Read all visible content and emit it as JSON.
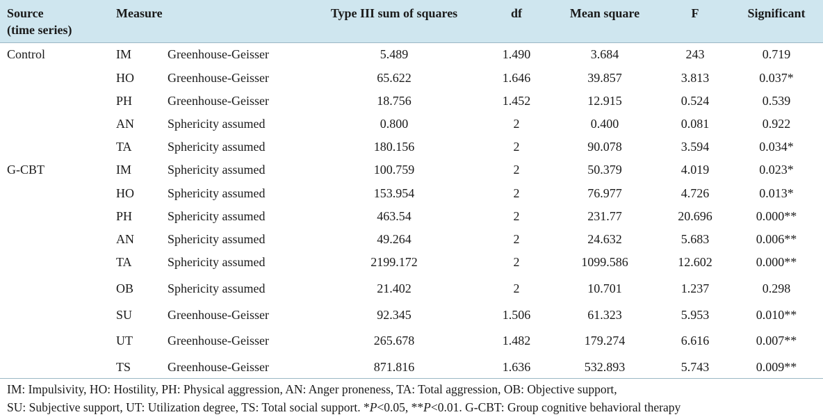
{
  "header": {
    "source_line1": "Source",
    "source_line2": "(time series)",
    "measure": "Measure",
    "ss": "Type III sum of squares",
    "df": "df",
    "ms": "Mean square",
    "f": "F",
    "sig": "Significant"
  },
  "rows": [
    {
      "source": "Control",
      "measure": "IM",
      "test": "Greenhouse-Geisser",
      "ss": "5.489",
      "df": "1.490",
      "ms": "3.684",
      "f": "243",
      "sig": "0.719"
    },
    {
      "source": "",
      "measure": "HO",
      "test": "Greenhouse-Geisser",
      "ss": "65.622",
      "df": "1.646",
      "ms": "39.857",
      "f": "3.813",
      "sig": "0.037*"
    },
    {
      "source": "",
      "measure": "PH",
      "test": "Greenhouse-Geisser",
      "ss": "18.756",
      "df": "1.452",
      "ms": "12.915",
      "f": "0.524",
      "sig": "0.539"
    },
    {
      "source": "",
      "measure": "AN",
      "test": "Sphericity assumed",
      "ss": "0.800",
      "df": "2",
      "ms": "0.400",
      "f": "0.081",
      "sig": "0.922"
    },
    {
      "source": "",
      "measure": "TA",
      "test": "Sphericity assumed",
      "ss": "180.156",
      "df": "2",
      "ms": "90.078",
      "f": "3.594",
      "sig": "0.034*"
    },
    {
      "source": "G-CBT",
      "measure": "IM",
      "test": "Sphericity assumed",
      "ss": "100.759",
      "df": "2",
      "ms": "50.379",
      "f": "4.019",
      "sig": "0.023*"
    },
    {
      "source": "",
      "measure": "HO",
      "test": "Sphericity assumed",
      "ss": "153.954",
      "df": "2",
      "ms": "76.977",
      "f": "4.726",
      "sig": "0.013*"
    },
    {
      "source": "",
      "measure": "PH",
      "test": "Sphericity assumed",
      "ss": "463.54",
      "df": "2",
      "ms": "231.77",
      "f": "20.696",
      "sig": "0.000**"
    },
    {
      "source": "",
      "measure": "AN",
      "test": "Sphericity assumed",
      "ss": "49.264",
      "df": "2",
      "ms": "24.632",
      "f": "5.683",
      "sig": "0.006**"
    },
    {
      "source": "",
      "measure": "TA",
      "test": "Sphericity assumed",
      "ss": "2199.172",
      "df": "2",
      "ms": "1099.586",
      "f": "12.602",
      "sig": "0.000**"
    },
    {
      "source": "",
      "measure": "OB",
      "test": "Sphericity assumed",
      "ss": "21.402",
      "df": "2",
      "ms": "10.701",
      "f": "1.237",
      "sig": "0.298"
    },
    {
      "source": "",
      "measure": "SU",
      "test": "Greenhouse-Geisser",
      "ss": "92.345",
      "df": "1.506",
      "ms": "61.323",
      "f": "5.953",
      "sig": "0.010**"
    },
    {
      "source": "",
      "measure": "UT",
      "test": "Greenhouse-Geisser",
      "ss": "265.678",
      "df": "1.482",
      "ms": "179.274",
      "f": "6.616",
      "sig": "0.007**"
    },
    {
      "source": "",
      "measure": "TS",
      "test": "Greenhouse-Geisser",
      "ss": "871.816",
      "df": "1.636",
      "ms": "532.893",
      "f": "5.743",
      "sig": "0.009**"
    }
  ],
  "footnote": {
    "line1": "IM: Impulsivity, HO: Hostility, PH: Physical aggression, AN: Anger proneness, TA: Total aggression, OB: Objective support,",
    "line2_a": "SU: Subjective support, UT: Utilization degree, TS: Total social support. *",
    "p1": "P",
    "line2_b": "<0.05, **",
    "p2": "P",
    "line2_c": "<0.01. G-CBT: Group cognitive behavioral therapy"
  }
}
